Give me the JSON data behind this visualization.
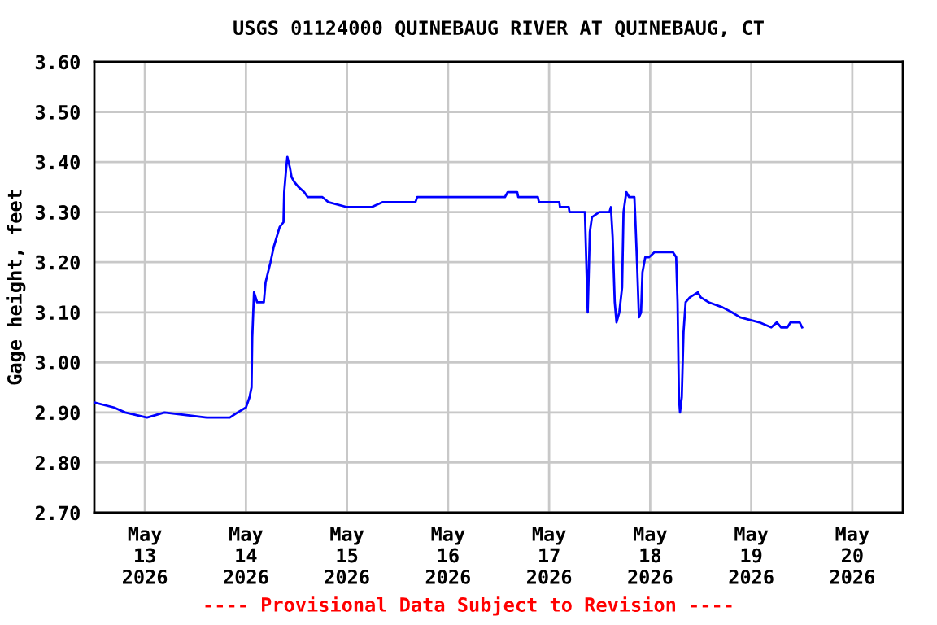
{
  "chart_data": {
    "type": "line",
    "title": "USGS 01124000 QUINEBAUG RIVER AT QUINEBAUG, CT",
    "ylabel": "Gage height, feet",
    "annotations": [
      "---- Provisional Data Subject to Revision ----"
    ],
    "x": [
      "2026-05-12T12:00",
      "2026-05-12T16:40",
      "2026-05-12T19:20",
      "2026-05-13T00:30",
      "2026-05-13T04:40",
      "2026-05-13T14:40",
      "2026-05-13T20:10",
      "2026-05-13T22:00",
      "2026-05-14T00:00",
      "2026-05-14T00:50",
      "2026-05-14T01:20",
      "2026-05-14T01:30",
      "2026-05-14T01:55",
      "2026-05-14T02:40",
      "2026-05-14T04:15",
      "2026-05-14T04:40",
      "2026-05-14T05:50",
      "2026-05-14T06:35",
      "2026-05-14T08:00",
      "2026-05-14T08:55",
      "2026-05-14T09:05",
      "2026-05-14T09:35",
      "2026-05-14T09:50",
      "2026-05-14T10:25",
      "2026-05-14T10:50",
      "2026-05-14T11:30",
      "2026-05-14T12:30",
      "2026-05-14T13:50",
      "2026-05-14T14:40",
      "2026-05-14T18:10",
      "2026-05-14T19:35",
      "2026-05-15T00:00",
      "2026-05-15T05:50",
      "2026-05-15T08:30",
      "2026-05-15T16:15",
      "2026-05-15T16:40",
      "2026-05-16T09:40",
      "2026-05-16T13:30",
      "2026-05-16T14:10",
      "2026-05-16T16:25",
      "2026-05-16T16:40",
      "2026-05-16T21:20",
      "2026-05-16T21:35",
      "2026-05-17T02:25",
      "2026-05-17T02:35",
      "2026-05-17T04:40",
      "2026-05-17T04:50",
      "2026-05-17T08:30",
      "2026-05-17T08:40",
      "2026-05-17T09:10",
      "2026-05-17T09:40",
      "2026-05-17T10:10",
      "2026-05-17T11:55",
      "2026-05-17T14:20",
      "2026-05-17T14:40",
      "2026-05-17T15:05",
      "2026-05-17T15:35",
      "2026-05-17T16:00",
      "2026-05-17T16:40",
      "2026-05-17T17:20",
      "2026-05-17T17:40",
      "2026-05-17T18:20",
      "2026-05-17T19:00",
      "2026-05-17T20:15",
      "2026-05-17T20:30",
      "2026-05-17T20:55",
      "2026-05-17T21:20",
      "2026-05-17T21:50",
      "2026-05-17T22:10",
      "2026-05-17T22:50",
      "2026-05-17T23:45",
      "2026-05-18T01:00",
      "2026-05-18T04:15",
      "2026-05-18T05:25",
      "2026-05-18T06:10",
      "2026-05-18T06:30",
      "2026-05-18T06:50",
      "2026-05-18T07:05",
      "2026-05-18T07:30",
      "2026-05-18T07:55",
      "2026-05-18T08:25",
      "2026-05-18T09:25",
      "2026-05-18T11:20",
      "2026-05-18T12:00",
      "2026-05-18T13:55",
      "2026-05-18T17:10",
      "2026-05-18T19:25",
      "2026-05-18T21:20",
      "2026-05-19T01:55",
      "2026-05-19T04:45",
      "2026-05-19T06:05",
      "2026-05-19T07:05",
      "2026-05-19T08:35",
      "2026-05-19T09:20",
      "2026-05-19T11:30",
      "2026-05-19T12:05"
    ],
    "series": [
      {
        "color": "#0000ff",
        "values": [
          2.92,
          2.91,
          2.9,
          2.89,
          2.9,
          2.89,
          2.89,
          2.9,
          2.91,
          2.93,
          2.95,
          3.05,
          3.14,
          3.12,
          3.12,
          3.16,
          3.2,
          3.23,
          3.27,
          3.28,
          3.34,
          3.39,
          3.41,
          3.39,
          3.37,
          3.36,
          3.35,
          3.34,
          3.33,
          3.33,
          3.32,
          3.31,
          3.31,
          3.32,
          3.32,
          3.33,
          3.33,
          3.33,
          3.34,
          3.34,
          3.33,
          3.33,
          3.32,
          3.32,
          3.31,
          3.31,
          3.3,
          3.3,
          3.25,
          3.1,
          3.26,
          3.29,
          3.3,
          3.3,
          3.31,
          3.25,
          3.12,
          3.08,
          3.1,
          3.15,
          3.3,
          3.34,
          3.33,
          3.33,
          3.28,
          3.19,
          3.09,
          3.1,
          3.18,
          3.21,
          3.21,
          3.22,
          3.22,
          3.22,
          3.21,
          3.12,
          2.93,
          2.9,
          2.93,
          3.06,
          3.12,
          3.13,
          3.14,
          3.13,
          3.12,
          3.11,
          3.1,
          3.09,
          3.08,
          3.07,
          3.08,
          3.07,
          3.07,
          3.08,
          3.08,
          3.07
        ]
      }
    ],
    "xlim": [
      "2026-05-12T12:00",
      "2026-05-20T12:00"
    ],
    "xticks": [
      {
        "value": "2026-05-13",
        "label": "May\n13\n2026"
      },
      {
        "value": "2026-05-14",
        "label": "May\n14\n2026"
      },
      {
        "value": "2026-05-15",
        "label": "May\n15\n2026"
      },
      {
        "value": "2026-05-16",
        "label": "May\n16\n2026"
      },
      {
        "value": "2026-05-17",
        "label": "May\n17\n2026"
      },
      {
        "value": "2026-05-18",
        "label": "May\n18\n2026"
      },
      {
        "value": "2026-05-19",
        "label": "May\n19\n2026"
      },
      {
        "value": "2026-05-20",
        "label": "May\n20\n2026"
      }
    ],
    "ylim": [
      2.7,
      3.6
    ],
    "yticks": [
      {
        "value": 2.7,
        "label": "2.70"
      },
      {
        "value": 2.8,
        "label": "2.80"
      },
      {
        "value": 2.9,
        "label": "2.90"
      },
      {
        "value": 3.0,
        "label": "3.00"
      },
      {
        "value": 3.1,
        "label": "3.10"
      },
      {
        "value": 3.2,
        "label": "3.20"
      },
      {
        "value": 3.3,
        "label": "3.30"
      },
      {
        "value": 3.4,
        "label": "3.40"
      },
      {
        "value": 3.5,
        "label": "3.50"
      },
      {
        "value": 3.6,
        "label": "3.60"
      }
    ],
    "grid": true,
    "marker": "none",
    "line_style": "solid"
  }
}
